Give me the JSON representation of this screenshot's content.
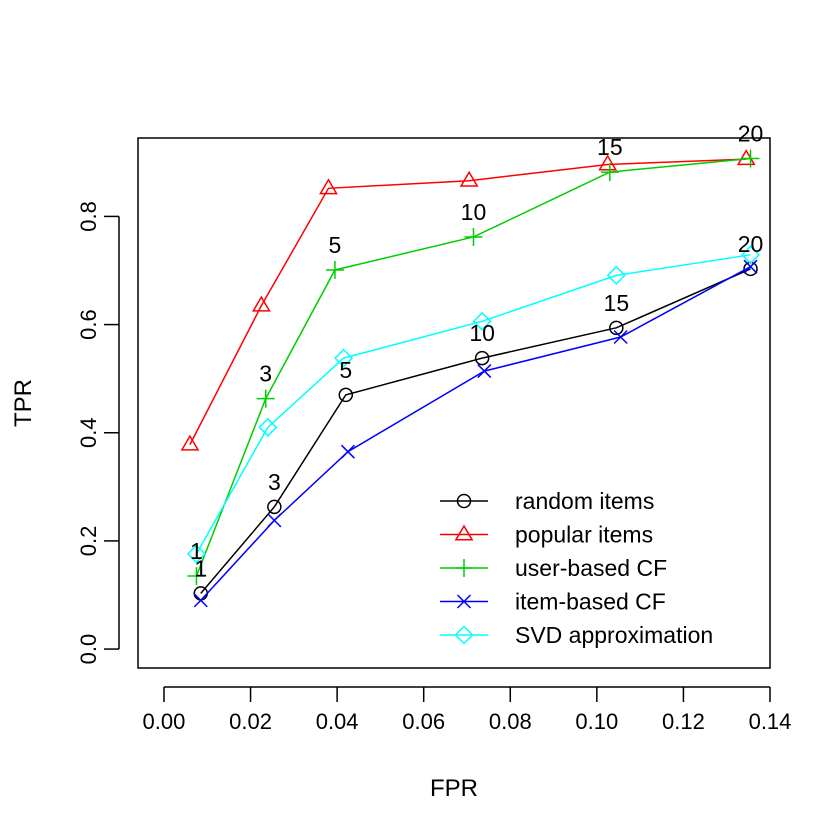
{
  "chart_data": {
    "type": "line",
    "title": "",
    "xlabel": "FPR",
    "ylabel": "TPR",
    "xlim": [
      -0.006,
      0.14
    ],
    "ylim": [
      -0.035,
      0.945
    ],
    "x_ticks": [
      0.0,
      0.02,
      0.04,
      0.06,
      0.08,
      0.1,
      0.12,
      0.14
    ],
    "x_tick_labels": [
      "0.00",
      "0.02",
      "0.04",
      "0.06",
      "0.08",
      "0.10",
      "0.12",
      "0.14"
    ],
    "y_ticks": [
      0.0,
      0.2,
      0.4,
      0.6,
      0.8
    ],
    "y_tick_labels": [
      "0.0",
      "0.2",
      "0.4",
      "0.6",
      "0.8"
    ],
    "grid": false,
    "legend_position": "bottom-right",
    "series": [
      {
        "name": "random items",
        "color": "#000000",
        "marker": "circle",
        "x": [
          0.0085,
          0.0255,
          0.042,
          0.0735,
          0.1045,
          0.1355
        ],
        "y": [
          0.103,
          0.263,
          0.47,
          0.538,
          0.594,
          0.703
        ],
        "point_labels": [
          "1",
          "3",
          "5",
          "10",
          "15",
          "20"
        ]
      },
      {
        "name": "popular items",
        "color": "#ff0000",
        "marker": "triangle",
        "x": [
          0.006,
          0.0225,
          0.038,
          0.0705,
          0.1025,
          0.1345
        ],
        "y": [
          0.378,
          0.635,
          0.852,
          0.866,
          0.896,
          0.906
        ],
        "point_labels": []
      },
      {
        "name": "user-based CF",
        "color": "#00cd00",
        "marker": "plus",
        "x": [
          0.0075,
          0.0235,
          0.0395,
          0.0715,
          0.103,
          0.1355
        ],
        "y": [
          0.135,
          0.463,
          0.701,
          0.762,
          0.882,
          0.907
        ],
        "point_labels": [
          "1",
          "3",
          "5",
          "10",
          "15",
          "20"
        ]
      },
      {
        "name": "item-based CF",
        "color": "#0000ff",
        "marker": "x",
        "x": [
          0.0085,
          0.0255,
          0.0425,
          0.074,
          0.1055,
          0.1355
        ],
        "y": [
          0.09,
          0.238,
          0.365,
          0.514,
          0.577,
          0.707
        ],
        "point_labels": []
      },
      {
        "name": "SVD approximation",
        "color": "#00ffff",
        "marker": "diamond",
        "x": [
          0.0075,
          0.024,
          0.0415,
          0.0735,
          0.1045,
          0.1355
        ],
        "y": [
          0.176,
          0.41,
          0.538,
          0.606,
          0.691,
          0.729
        ],
        "point_labels": []
      }
    ]
  }
}
